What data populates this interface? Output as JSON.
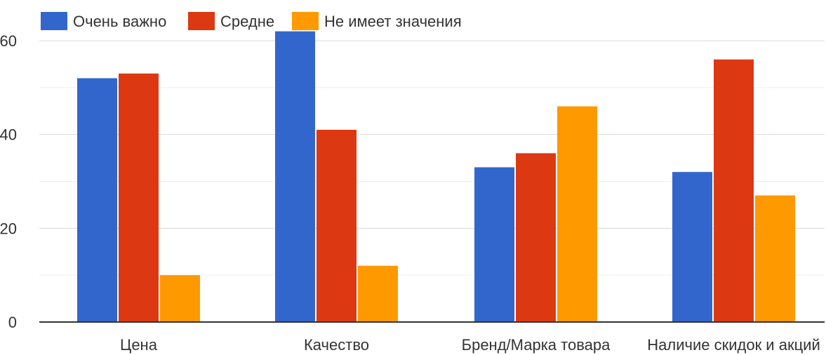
{
  "chart_data": {
    "type": "bar",
    "title": "",
    "xlabel": "",
    "ylabel": "",
    "categories": [
      "Цена",
      "Качество",
      "Бренд/Марка товара",
      "Наличие скидок и акций"
    ],
    "series": [
      {
        "name": "Очень важно",
        "color": "#3366cc",
        "values": [
          52,
          62,
          33,
          32
        ]
      },
      {
        "name": "Средне",
        "color": "#dc3912",
        "values": [
          53,
          41,
          36,
          56
        ]
      },
      {
        "name": "Не имеет значения",
        "color": "#ff9900",
        "values": [
          10,
          12,
          46,
          27
        ]
      }
    ],
    "ylim": [
      0,
      60
    ],
    "yticks": [
      0,
      20,
      40,
      60
    ],
    "ytick_labels": [
      "0",
      "20",
      "40",
      "60"
    ],
    "minor_gridlines": [
      10,
      30,
      50
    ],
    "grid": true,
    "legend_position": "top-left"
  }
}
